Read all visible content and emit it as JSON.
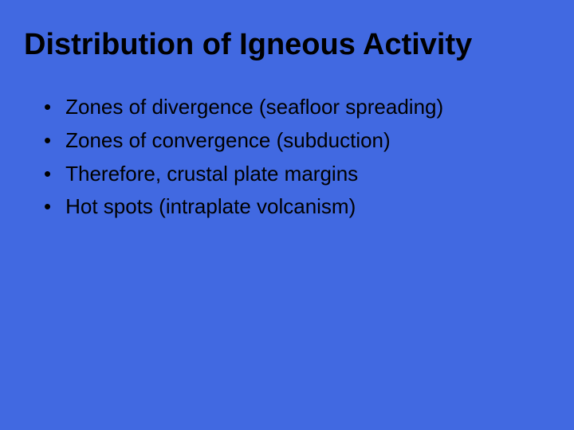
{
  "slide": {
    "title": "Distribution of Igneous Activity",
    "bullets": [
      "Zones of divergence (seafloor spreading)",
      "Zones of convergence (subduction)",
      "Therefore, crustal plate margins",
      "Hot spots (intraplate volcanism)"
    ],
    "background_color": "#4169e1",
    "text_color": "#000000",
    "title_fontsize": 38,
    "bullet_fontsize": 26,
    "font_family": "Arial",
    "bullet_marker": "•"
  }
}
